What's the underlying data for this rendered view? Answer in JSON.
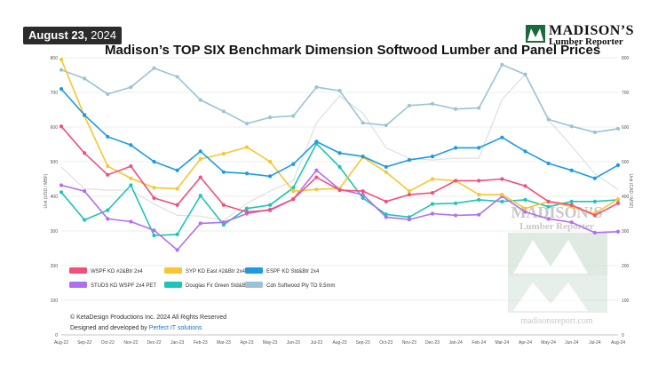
{
  "header": {
    "date": "August 23,",
    "year": "2024",
    "title": "Madison’s TOP SIX Benchmark Dimension Softwood Lumber and Panel Prices",
    "logo_name": "MADISON’S",
    "logo_sub": "Lumber Reporter"
  },
  "watermark": {
    "name": "MADISON’S",
    "sub": "Lumber Reporter",
    "url": "madisonsreport.com"
  },
  "credits": {
    "copyright": "© KetaDesign Productions Inc. 2024 All Rights Reserved",
    "designed_prefix": "Designed and developed by ",
    "designed_link": "Perfect IT solutions"
  },
  "chart_data": {
    "type": "line",
    "x": [
      "Aug-22",
      "Sep-22",
      "Oct-22",
      "Nov-22",
      "Dec-22",
      "Jan-23",
      "Feb-23",
      "Mar-23",
      "Apr-23",
      "May-23",
      "Jun-23",
      "Jul-23",
      "Aug-23",
      "Sep-23",
      "Oct-23",
      "Nov-23",
      "Dec-23",
      "Jan-24",
      "Feb-24",
      "Mar-24",
      "Apr-24",
      "May-24",
      "Jun-24",
      "Jul-24",
      "Aug-24"
    ],
    "ylabel": "Unit (USD / MBF)",
    "y2label": "Unit (CAD / MSF)",
    "ylim": [
      0,
      800
    ],
    "y2lim": [
      0,
      800
    ],
    "yticks": [
      0,
      100,
      200,
      300,
      400,
      500,
      600,
      700,
      800
    ],
    "grid": true,
    "legend_position": "bottom-left",
    "series": [
      {
        "name": "WSPF KD #2&Btr 2x4",
        "color": "#f0507a",
        "axis": "left",
        "values": [
          602,
          525,
          462,
          487,
          395,
          375,
          455,
          375,
          355,
          360,
          392,
          455,
          418,
          415,
          385,
          405,
          410,
          445,
          445,
          450,
          430,
          385,
          375,
          345,
          380
        ]
      },
      {
        "name": "SYP KD East #2&Btr 2x4",
        "color": "#f7c630",
        "axis": "left",
        "values": [
          795,
          632,
          487,
          452,
          425,
          422,
          508,
          523,
          542,
          500,
          415,
          420,
          423,
          513,
          470,
          415,
          450,
          445,
          405,
          405,
          365,
          385,
          370,
          350,
          392
        ]
      },
      {
        "name": "ESPF KD Std&Btr 2x4",
        "color": "#1a9be4",
        "axis": "left",
        "values": [
          710,
          635,
          572,
          548,
          500,
          475,
          530,
          470,
          466,
          458,
          493,
          558,
          525,
          515,
          485,
          505,
          515,
          540,
          540,
          570,
          530,
          495,
          475,
          452,
          490
        ]
      },
      {
        "name": "STUDS KD WSPF 2x4 PET",
        "color": "#b26ef0",
        "axis": "left",
        "values": [
          432,
          415,
          335,
          327,
          302,
          245,
          322,
          325,
          350,
          362,
          392,
          475,
          420,
          405,
          340,
          333,
          350,
          345,
          347,
          400,
          355,
          335,
          325,
          295,
          298
        ]
      },
      {
        "name": "Douglas Fir Green Std&Btr 2x4",
        "color": "#1fc4b8",
        "axis": "left",
        "values": [
          412,
          332,
          360,
          432,
          287,
          290,
          402,
          318,
          365,
          375,
          425,
          552,
          485,
          395,
          348,
          340,
          378,
          380,
          390,
          385,
          390,
          370,
          385,
          385,
          390
        ]
      },
      {
        "name": "Cdn Softwood Ply TO 9.5mm",
        "color": "#9ac3d6",
        "axis": "right",
        "values": [
          765,
          740,
          695,
          715,
          770,
          745,
          678,
          645,
          610,
          628,
          632,
          715,
          705,
          612,
          605,
          662,
          667,
          652,
          655,
          780,
          752,
          622,
          602,
          585,
          595
        ]
      },
      {
        "name": "",
        "color": "#dfdfdf",
        "axis": "left",
        "values": [
          485,
          422,
          418,
          418,
          378,
          345,
          343,
          330,
          380,
          415,
          445,
          612,
          690,
          640,
          540,
          510,
          505,
          510,
          510,
          680,
          752,
          620,
          545,
          465,
          420
        ]
      }
    ]
  }
}
